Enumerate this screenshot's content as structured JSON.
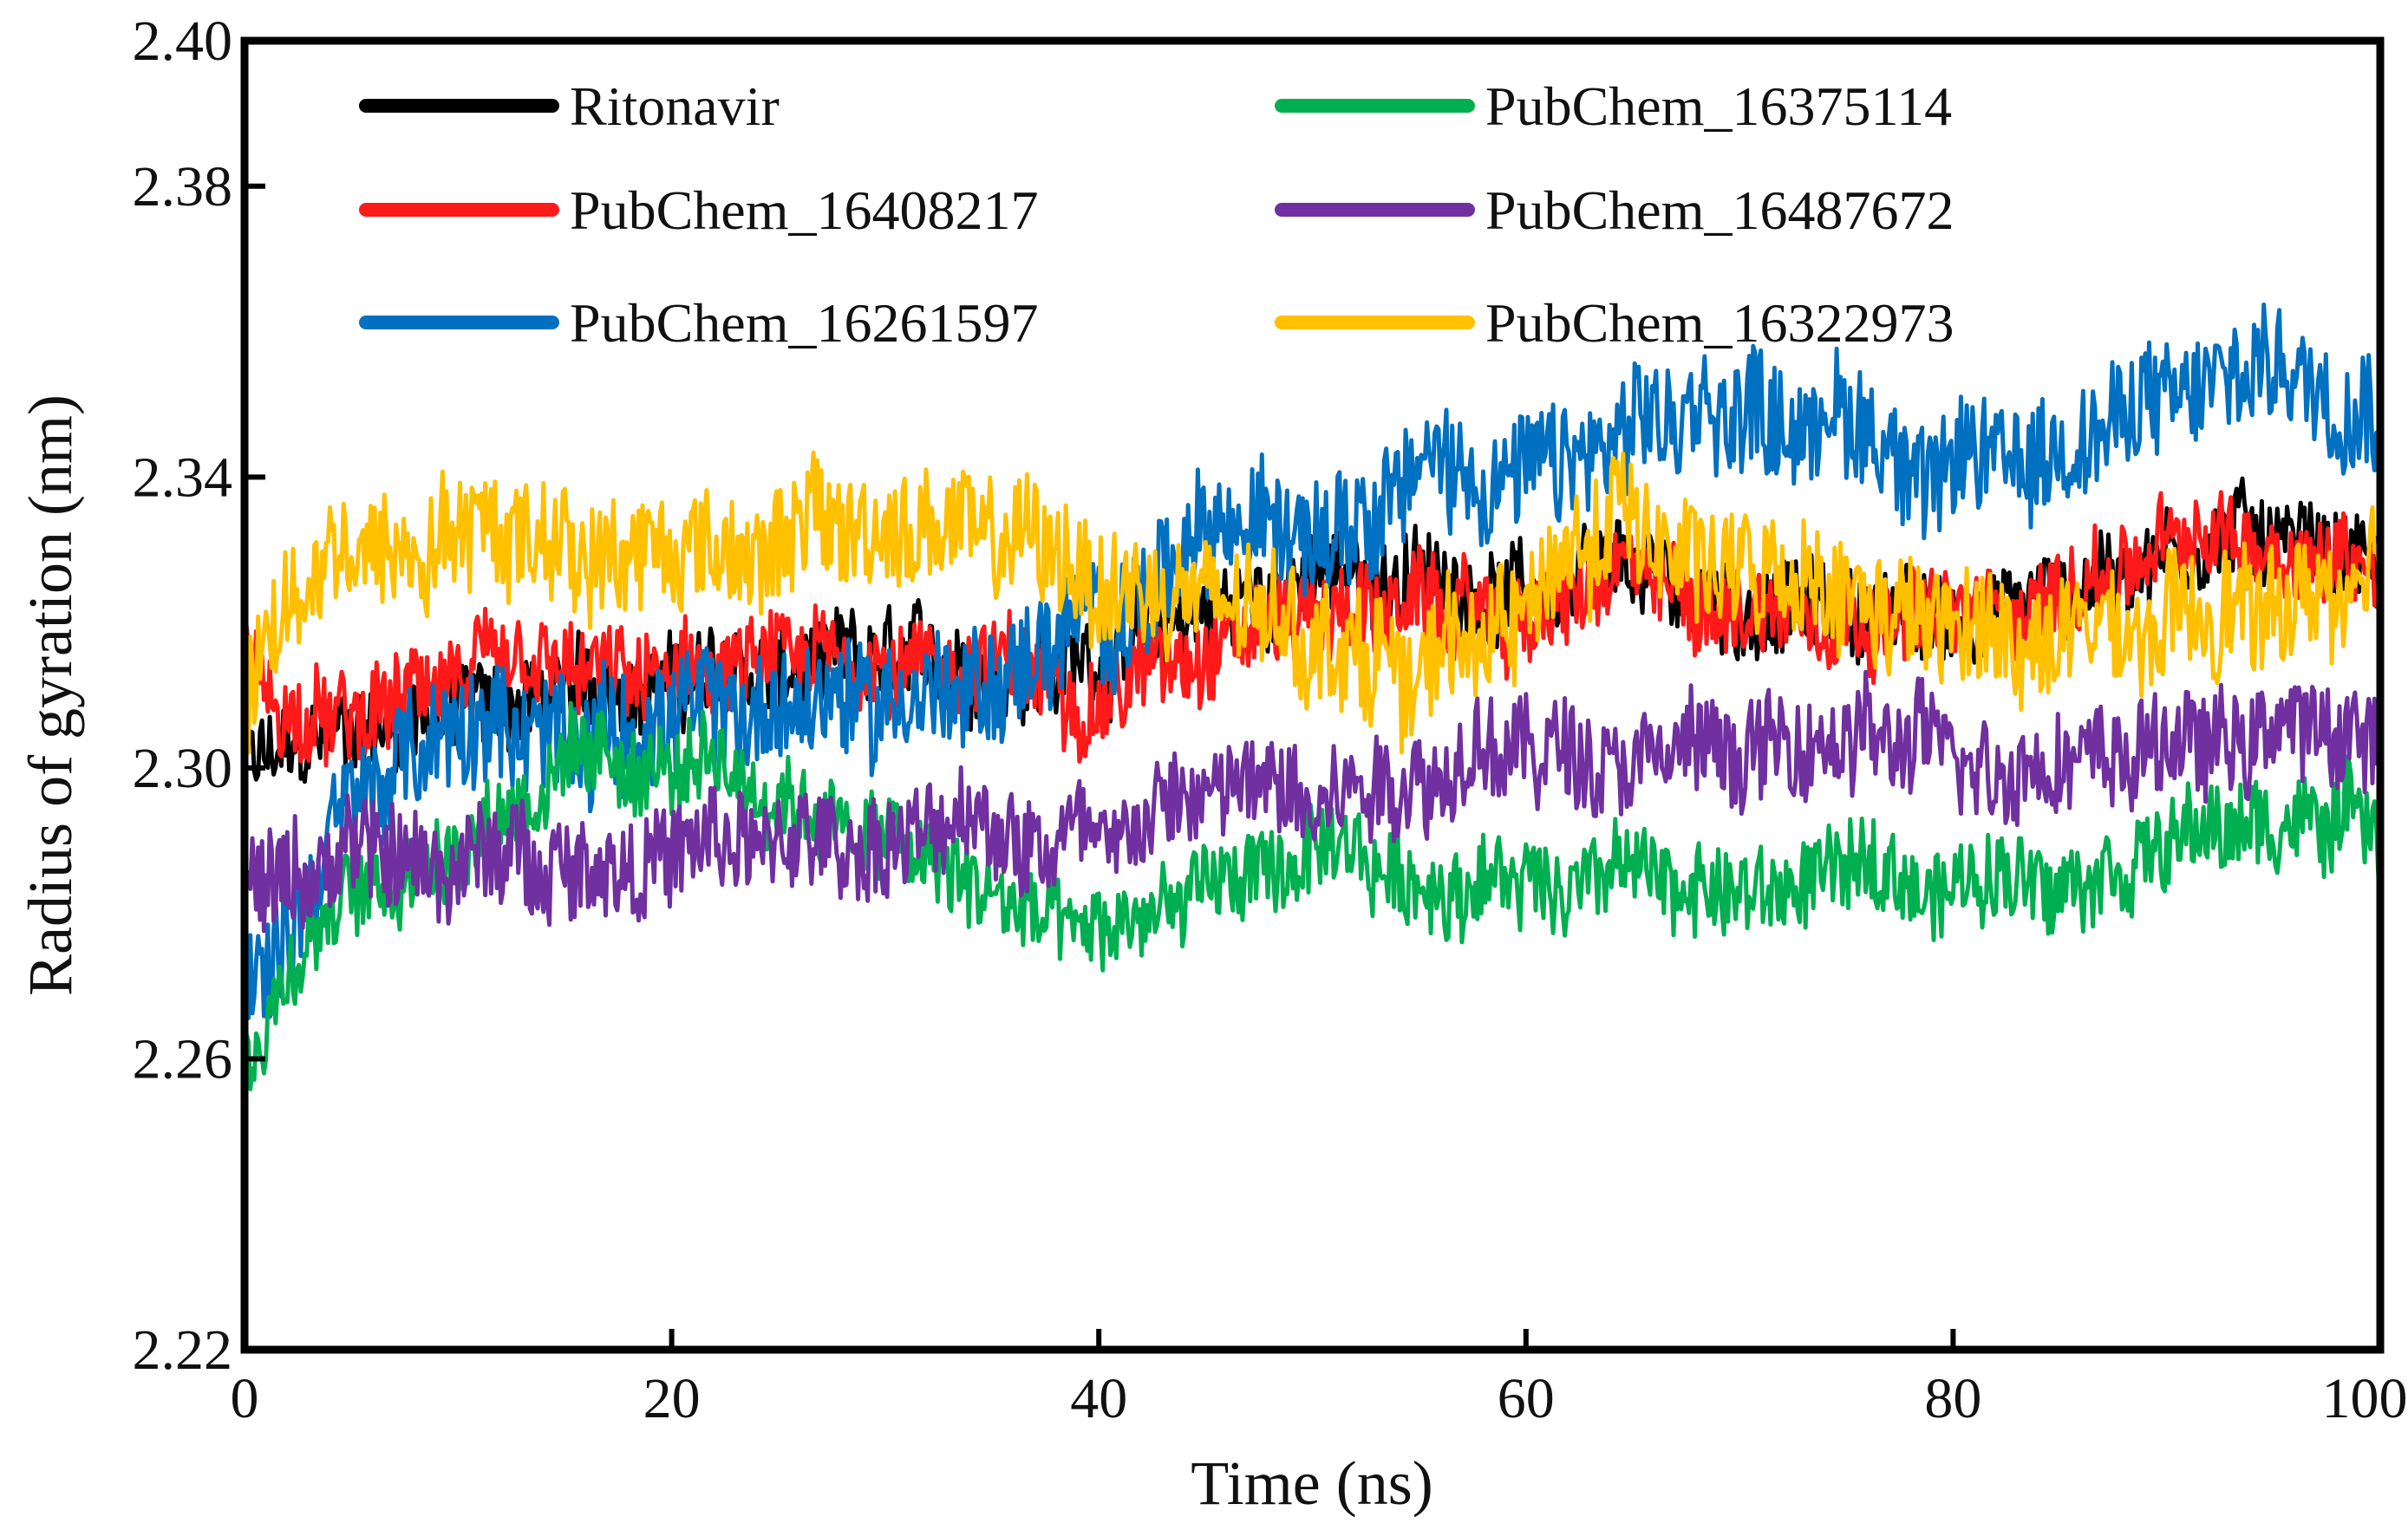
{
  "chart_data": {
    "type": "line",
    "title": "",
    "xlabel": "Time (ns)",
    "ylabel": "Radius of gyration (nm)",
    "xlim": [
      0,
      100
    ],
    "ylim": [
      2.22,
      2.4
    ],
    "xticks": [
      0,
      20,
      40,
      60,
      80,
      100
    ],
    "xtick_labels": [
      "0",
      "20",
      "40",
      "60",
      "80",
      "100"
    ],
    "yticks": [
      2.22,
      2.26,
      2.3,
      2.34,
      2.38,
      2.4
    ],
    "ytick_labels": [
      "2.22",
      "2.26",
      "2.30",
      "2.34",
      "2.38",
      "2.40"
    ],
    "grid": false,
    "legend_position": "top-left",
    "x": [
      0,
      2,
      5,
      10,
      15,
      20,
      25,
      30,
      35,
      40,
      45,
      50,
      55,
      60,
      65,
      70,
      75,
      80,
      85,
      90,
      95,
      100
    ],
    "series": [
      {
        "name": "Ritonavir",
        "color": "#000000",
        "noise": 0.006,
        "values": [
          2.3,
          2.302,
          2.305,
          2.308,
          2.31,
          2.312,
          2.313,
          2.314,
          2.314,
          2.315,
          2.322,
          2.326,
          2.326,
          2.324,
          2.326,
          2.322,
          2.322,
          2.32,
          2.324,
          2.33,
          2.333,
          2.328
        ]
      },
      {
        "name": "PubChem_16408217",
        "color": "#ff1a1a",
        "noise": 0.006,
        "values": [
          2.315,
          2.307,
          2.305,
          2.313,
          2.312,
          2.312,
          2.314,
          2.315,
          2.314,
          2.31,
          2.318,
          2.322,
          2.322,
          2.32,
          2.326,
          2.322,
          2.322,
          2.32,
          2.324,
          2.33,
          2.331,
          2.328
        ]
      },
      {
        "name": "PubChem_16261597",
        "color": "#0070c0",
        "noise": 0.008,
        "values": [
          2.268,
          2.278,
          2.296,
          2.304,
          2.306,
          2.306,
          2.308,
          2.31,
          2.312,
          2.32,
          2.33,
          2.335,
          2.342,
          2.34,
          2.344,
          2.35,
          2.348,
          2.34,
          2.345,
          2.35,
          2.356,
          2.352
        ]
      },
      {
        "name": "PubChem_16375114",
        "color": "#00b050",
        "noise": 0.006,
        "values": [
          2.258,
          2.272,
          2.282,
          2.29,
          2.3,
          2.3,
          2.296,
          2.29,
          2.282,
          2.276,
          2.284,
          2.287,
          2.284,
          2.285,
          2.286,
          2.282,
          2.286,
          2.284,
          2.286,
          2.29,
          2.292,
          2.294
        ]
      },
      {
        "name": "PubChem_16487672",
        "color": "#7030a0",
        "noise": 0.007,
        "values": [
          2.284,
          2.285,
          2.287,
          2.287,
          2.288,
          2.288,
          2.289,
          2.29,
          2.291,
          2.292,
          2.296,
          2.298,
          2.3,
          2.302,
          2.303,
          2.302,
          2.303,
          2.302,
          2.302,
          2.303,
          2.305,
          2.305
        ]
      },
      {
        "name": "PubChem_16322973",
        "color": "#ffc000",
        "noise": 0.008,
        "values": [
          2.308,
          2.322,
          2.33,
          2.334,
          2.332,
          2.33,
          2.332,
          2.333,
          2.332,
          2.326,
          2.322,
          2.318,
          2.314,
          2.322,
          2.336,
          2.326,
          2.322,
          2.318,
          2.318,
          2.318,
          2.322,
          2.325
        ]
      }
    ]
  }
}
